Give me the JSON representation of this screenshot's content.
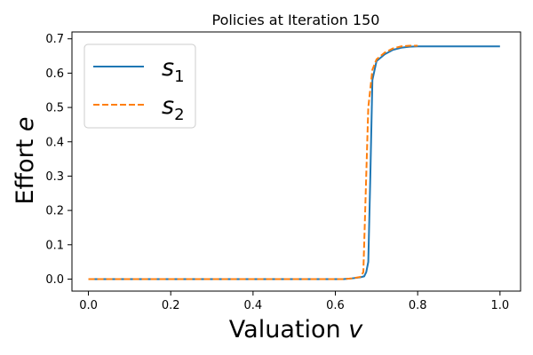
{
  "chart_data": {
    "type": "line",
    "title": "Policies at Iteration 150",
    "xlabel": "Valuation",
    "xlabel_var": "v",
    "ylabel": "Effort",
    "ylabel_var": "e",
    "xlim": [
      -0.04,
      1.05
    ],
    "ylim": [
      -0.035,
      0.72
    ],
    "xticks": [
      0.0,
      0.2,
      0.4,
      0.6,
      0.8,
      1.0
    ],
    "xtick_labels": [
      "0.0",
      "0.2",
      "0.4",
      "0.6",
      "0.8",
      "1.0"
    ],
    "yticks": [
      0.0,
      0.1,
      0.2,
      0.3,
      0.4,
      0.5,
      0.6,
      0.7
    ],
    "ytick_labels": [
      "0.0",
      "0.1",
      "0.2",
      "0.3",
      "0.4",
      "0.5",
      "0.6",
      "0.7"
    ],
    "grid": false,
    "legend_position": "top-left",
    "series": [
      {
        "name": "s",
        "name_sub": "1",
        "color": "#1f77b4",
        "style": "solid",
        "x": [
          0.0,
          0.62,
          0.64,
          0.66,
          0.67,
          0.675,
          0.68,
          0.685,
          0.69,
          0.7,
          0.72,
          0.74,
          0.76,
          0.78,
          0.8,
          0.85,
          0.9,
          0.95,
          1.0
        ],
        "y": [
          0.0,
          0.0,
          0.002,
          0.005,
          0.008,
          0.02,
          0.05,
          0.3,
          0.58,
          0.635,
          0.655,
          0.668,
          0.674,
          0.677,
          0.678,
          0.678,
          0.678,
          0.678,
          0.678
        ]
      },
      {
        "name": "s",
        "name_sub": "2",
        "color": "#ff7f0e",
        "style": "dashed",
        "x": [
          0.0,
          0.62,
          0.64,
          0.66,
          0.668,
          0.675,
          0.68,
          0.69,
          0.7,
          0.72,
          0.74,
          0.76,
          0.78,
          0.8
        ],
        "y": [
          0.0,
          0.0,
          0.002,
          0.006,
          0.02,
          0.3,
          0.5,
          0.61,
          0.64,
          0.66,
          0.672,
          0.678,
          0.68,
          0.68
        ]
      }
    ]
  }
}
